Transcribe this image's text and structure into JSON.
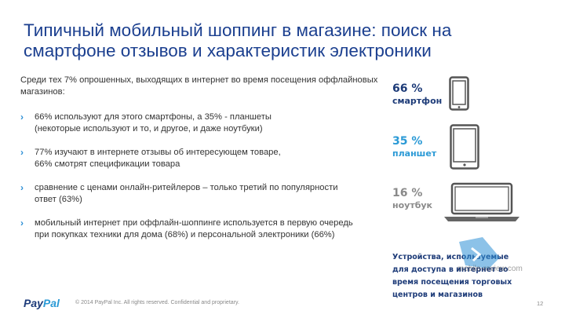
{
  "title": "Типичный мобильный шоппинг в магазине: поиск на смартфоне отзывов и характеристик электроники",
  "intro": "Среди тех 7% опрошенных, выходящих в интернет во время посещения оффлайновых магазинов:",
  "bullets": [
    {
      "line1": "66% используют для этого смартфоны, а 35% - планшеты",
      "line2": "(некоторые используют и то, и другое, и даже ноутбуки)"
    },
    {
      "line1": "77% изучают в интернете отзывы об интересующем товаре,",
      "line2": "66% смотрят спецификации товара"
    },
    {
      "line1": "сравнение с ценами онлайн-ритейлеров – только третий по популярности",
      "line2": "ответ (63%)"
    },
    {
      "line1": "мобильный интернет при оффлайн-шоппинге используется в первую очередь",
      "line2": "при покупках техники для дома (68%) и персональной электроники (66%)"
    }
  ],
  "devices": [
    {
      "pct": "66 %",
      "label": "смартфон",
      "icon": "smartphone-icon",
      "color": "#1d3b78"
    },
    {
      "pct": "35 %",
      "label": "планшет",
      "icon": "tablet-icon",
      "color": "#2b9ad6"
    },
    {
      "pct": "16 %",
      "label": "ноутбук",
      "icon": "laptop-icon",
      "color": "#8a8a8a"
    }
  ],
  "caption": "Устройства, используемые для доступа в интернет во время посещения торговых центров и магазинов",
  "watermark": "mobile-review.com",
  "footer": {
    "logo_part1": "Pay",
    "logo_part2": "Pal",
    "copyright": "© 2014 PayPal Inc. All rights reserved. Confidential and proprietary.",
    "page": "12"
  }
}
